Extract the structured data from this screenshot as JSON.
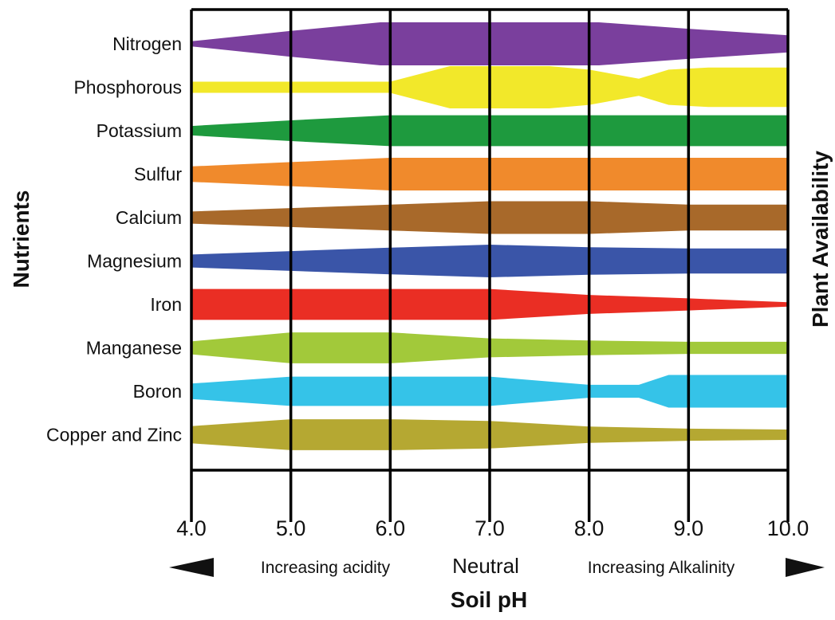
{
  "chart_data": {
    "type": "area",
    "x_ticks": [
      "4.0",
      "5.0",
      "6.0",
      "7.0",
      "8.0",
      "9.0",
      "10.0"
    ],
    "xlim": [
      4.0,
      10.0
    ],
    "xlabel": "Soil pH",
    "ylabel_left": "Nutrients",
    "ylabel_right": "Plant Availability",
    "annotations": {
      "acidity": "Increasing acidity",
      "neutral": "Neutral",
      "alkalinity": "Increasing Alkalinity"
    },
    "grid": true,
    "series": [
      {
        "name": "Nitrogen",
        "color": "#7a3f9d",
        "availability": [
          [
            4.0,
            0.12
          ],
          [
            5.0,
            0.6
          ],
          [
            5.9,
            1.0
          ],
          [
            7.0,
            1.0
          ],
          [
            8.1,
            1.0
          ],
          [
            9.0,
            0.7
          ],
          [
            10.0,
            0.4
          ]
        ]
      },
      {
        "name": "Phosphorous",
        "color": "#f2e82a",
        "availability": [
          [
            4.0,
            0.26
          ],
          [
            5.0,
            0.26
          ],
          [
            6.0,
            0.26
          ],
          [
            6.6,
            0.98
          ],
          [
            7.6,
            0.98
          ],
          [
            8.0,
            0.82
          ],
          [
            8.5,
            0.4
          ],
          [
            8.8,
            0.82
          ],
          [
            9.2,
            0.92
          ],
          [
            10.0,
            0.92
          ]
        ]
      },
      {
        "name": "Potassium",
        "color": "#1e9a3e",
        "availability": [
          [
            4.0,
            0.22
          ],
          [
            5.0,
            0.48
          ],
          [
            6.0,
            0.72
          ],
          [
            7.0,
            0.72
          ],
          [
            8.0,
            0.72
          ],
          [
            9.0,
            0.72
          ],
          [
            10.0,
            0.72
          ]
        ]
      },
      {
        "name": "Sulfur",
        "color": "#f08a2c",
        "availability": [
          [
            4.0,
            0.36
          ],
          [
            5.0,
            0.56
          ],
          [
            6.0,
            0.76
          ],
          [
            7.0,
            0.76
          ],
          [
            8.0,
            0.76
          ],
          [
            9.0,
            0.76
          ],
          [
            10.0,
            0.76
          ]
        ]
      },
      {
        "name": "Calcium",
        "color": "#a8692a",
        "availability": [
          [
            4.0,
            0.28
          ],
          [
            5.0,
            0.44
          ],
          [
            6.0,
            0.6
          ],
          [
            7.0,
            0.76
          ],
          [
            8.0,
            0.76
          ],
          [
            9.0,
            0.6
          ],
          [
            10.0,
            0.6
          ]
        ]
      },
      {
        "name": "Magnesium",
        "color": "#3a55a8",
        "availability": [
          [
            4.0,
            0.3
          ],
          [
            5.0,
            0.46
          ],
          [
            6.0,
            0.62
          ],
          [
            7.0,
            0.76
          ],
          [
            8.0,
            0.64
          ],
          [
            9.0,
            0.58
          ],
          [
            10.0,
            0.58
          ]
        ]
      },
      {
        "name": "Iron",
        "color": "#ea2e24",
        "availability": [
          [
            4.0,
            0.72
          ],
          [
            5.0,
            0.72
          ],
          [
            6.0,
            0.72
          ],
          [
            7.0,
            0.72
          ],
          [
            8.0,
            0.44
          ],
          [
            9.0,
            0.28
          ],
          [
            10.0,
            0.1
          ]
        ]
      },
      {
        "name": "Manganese",
        "color": "#a2c93a",
        "availability": [
          [
            4.0,
            0.3
          ],
          [
            5.0,
            0.72
          ],
          [
            6.0,
            0.72
          ],
          [
            7.0,
            0.44
          ],
          [
            8.0,
            0.34
          ],
          [
            9.0,
            0.28
          ],
          [
            10.0,
            0.28
          ]
        ]
      },
      {
        "name": "Boron",
        "color": "#35c3e8",
        "availability": [
          [
            4.0,
            0.36
          ],
          [
            5.0,
            0.68
          ],
          [
            6.0,
            0.68
          ],
          [
            7.0,
            0.68
          ],
          [
            8.0,
            0.3
          ],
          [
            8.5,
            0.3
          ],
          [
            8.8,
            0.76
          ],
          [
            9.5,
            0.76
          ],
          [
            10.0,
            0.76
          ]
        ]
      },
      {
        "name": "Copper and Zinc",
        "color": "#b5a832",
        "availability": [
          [
            4.0,
            0.4
          ],
          [
            5.0,
            0.72
          ],
          [
            6.0,
            0.72
          ],
          [
            7.0,
            0.64
          ],
          [
            8.0,
            0.38
          ],
          [
            9.0,
            0.28
          ],
          [
            10.0,
            0.24
          ]
        ]
      }
    ]
  }
}
